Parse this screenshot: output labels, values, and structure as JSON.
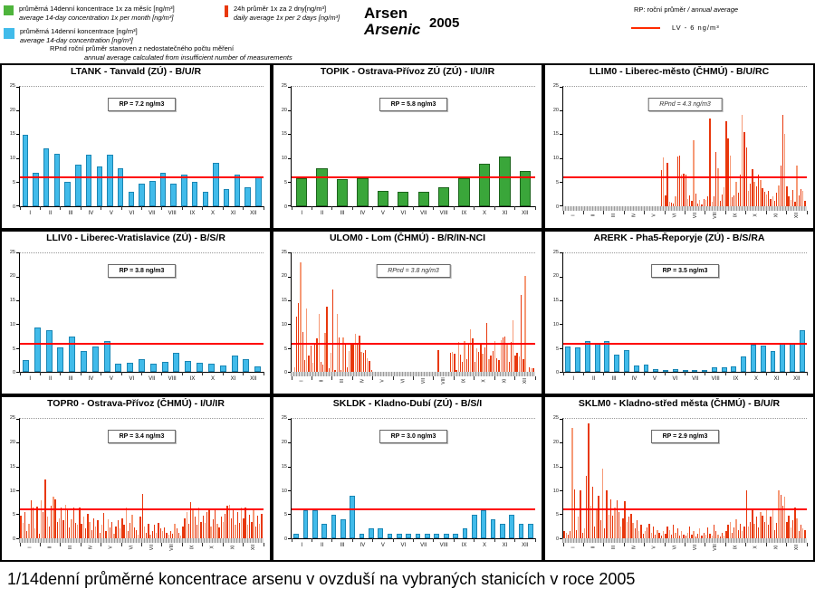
{
  "title": {
    "cz": "Arsen",
    "en": "Arsenic",
    "year": "2005"
  },
  "caption": "1/14denní průměrné koncentrace arsenu v ovzduší na vybraných stanicích v roce 2005",
  "legend": {
    "green": {
      "cz": "průměrná 14denní koncentrace 1x za měsíc [ng/m³]",
      "en": "average 14-day concentration 1x per month [ng/m³]"
    },
    "red": {
      "cz": "24h průměr 1x za 2 dny[ng/m³]",
      "en": "daily average 1x per 2 days [ng/m³]"
    },
    "cyan": {
      "cz": "průměrná 14denní koncentrace [ng/m³]",
      "en": "average 14-day concentration  [ng/m³]"
    },
    "rpnd_note": {
      "cz": "RPnd  roční průměr stanoven z nedostatečného počtu měření",
      "en": "annual average calculated from insufficient number of measurements"
    },
    "rp_note_cz": "RP: roční průměr",
    "rp_note_en": " / annual average",
    "lv_text": "LV   - 6 ng/m³"
  },
  "colors": {
    "cyan": "#41bbea",
    "cyan_border": "#1a86b4",
    "green": "#3aa63a",
    "green_border": "#1c641c",
    "daily_dark": "#e8380d",
    "daily_light": "#f69a77",
    "lv_line": "#ff0000"
  },
  "months": [
    "I",
    "II",
    "III",
    "IV",
    "V",
    "VI",
    "VII",
    "VIII",
    "IX",
    "X",
    "XI",
    "XII"
  ],
  "chart_data": [
    {
      "id": "ltank",
      "type": "bar",
      "style": "cyan",
      "title": "LTANK - Tanvald (ZÚ) - B/U/R",
      "rp_label": "RP = 7.2 ng/m3",
      "rp_nd": false,
      "ylim": [
        0,
        25
      ],
      "yticks": [
        0,
        5,
        10,
        15,
        20,
        25
      ],
      "lv": 6,
      "x_rotated": false,
      "gray_band": false,
      "values": [
        15.0,
        7.0,
        12.0,
        11.0,
        5.0,
        8.7,
        10.7,
        8.3,
        10.8,
        8.0,
        3.0,
        4.6,
        5.3,
        7.0,
        4.6,
        6.5,
        5.0,
        3.0,
        9.0,
        3.6,
        6.6,
        3.9,
        6.2
      ]
    },
    {
      "id": "topik",
      "type": "bar",
      "style": "green",
      "title": "TOPIK - Ostrava-Přívoz ZÚ (ZÚ) - I/U/IR",
      "rp_label": "RP = 5.8 ng/m3",
      "rp_nd": false,
      "ylim": [
        0,
        25
      ],
      "yticks": [
        0,
        5,
        10,
        15,
        20,
        25
      ],
      "lv": 6,
      "x_rotated": false,
      "gray_band": false,
      "values": [
        5.9,
        7.9,
        5.6,
        5.9,
        3.1,
        3.0,
        3.0,
        4.0,
        5.9,
        8.8,
        10.3,
        7.3
      ]
    },
    {
      "id": "llim0",
      "type": "bar",
      "style": "daily",
      "title": "LLIM0 - Liberec-město (ČHMÚ) - B/U/RC",
      "rp_label": "RPnd = 4.3 ng/m3",
      "rp_nd": true,
      "ylim": [
        0,
        25
      ],
      "yticks": [
        0,
        5,
        10,
        15,
        20,
        25
      ],
      "lv": 6,
      "x_rotated": true,
      "gray_band": true,
      "values": [
        0,
        0,
        0,
        0,
        0,
        0,
        0,
        0,
        0,
        0,
        0,
        0,
        0,
        0,
        0,
        0,
        0,
        0,
        0,
        0,
        0,
        0,
        0,
        0,
        0,
        0,
        0,
        0,
        0,
        0,
        0,
        0,
        0,
        0,
        0,
        0,
        0,
        0,
        0,
        0,
        0,
        0,
        0,
        0,
        0,
        0,
        0,
        0,
        7.6,
        10.2,
        2.3,
        9.0,
        0.8,
        0.7,
        0.5,
        2.0,
        10.3,
        10.5,
        6.6,
        6.8,
        6.5,
        1.5,
        2.3,
        1.0,
        13.8,
        2.6,
        0.6,
        1.2,
        0.3,
        1.5,
        1.2,
        2.0,
        18.3,
        0.9,
        2.1,
        11.3,
        8.0,
        1.0,
        2.5,
        4.0,
        17.7,
        14.2,
        10.6,
        1.8,
        2.2,
        5.0,
        2.8,
        6.5,
        19.2,
        15.5,
        12.2,
        3.2,
        4.6,
        7.8,
        5.0,
        4.2,
        6.6,
        5.5,
        3.8,
        3.0,
        2.5,
        3.2,
        1.5,
        2.0,
        1.0,
        2.8,
        4.3,
        8.5,
        19.1,
        15.1,
        4.2,
        2.0,
        1.2,
        3.3,
        0.8,
        8.5,
        2.2,
        3.5,
        3.2,
        1.0
      ]
    },
    {
      "id": "lliv0",
      "type": "bar",
      "style": "cyan",
      "title": "LLIV0 - Liberec-Vratislavice (ZÚ) - B/S/R",
      "rp_label": "RP = 3.8 ng/m3",
      "rp_nd": false,
      "ylim": [
        0,
        25
      ],
      "yticks": [
        0,
        5,
        10,
        15,
        20,
        25
      ],
      "lv": 6,
      "x_rotated": false,
      "gray_band": false,
      "values": [
        2.6,
        9.4,
        8.8,
        5.2,
        7.5,
        4.5,
        5.3,
        6.5,
        1.8,
        1.9,
        2.7,
        1.7,
        2.1,
        4.1,
        2.3,
        2.0,
        1.7,
        1.3,
        3.5,
        2.7,
        1.2
      ]
    },
    {
      "id": "ulom0",
      "type": "bar",
      "style": "daily",
      "title": "ULOM0 - Lom (ČHMÚ) - B/R/IN-NCI",
      "rp_label": "RPnd = 3.8 ng/m3",
      "rp_nd": true,
      "ylim": [
        0,
        25
      ],
      "yticks": [
        0,
        5,
        10,
        15,
        20,
        25
      ],
      "lv": 6,
      "x_rotated": true,
      "gray_band": true,
      "values": [
        0,
        1.0,
        11.6,
        14.5,
        23.0,
        8.5,
        2.6,
        13.4,
        3.5,
        5.5,
        2.0,
        6.2,
        7.0,
        12.3,
        2.2,
        1.5,
        8.3,
        13.8,
        0.8,
        4.0,
        17.4,
        0.5,
        12.2,
        7.3,
        0.4,
        7.2,
        6.2,
        1.0,
        4.5,
        5.8,
        6.0,
        8.0,
        5.8,
        7.7,
        4.2,
        4.0,
        4.6,
        2.9,
        2.4,
        0.5,
        0,
        0,
        0,
        0,
        0,
        0,
        0,
        0,
        0,
        0,
        0,
        0,
        0,
        0,
        0,
        0,
        0,
        0,
        0,
        0,
        0,
        0,
        0,
        0,
        0,
        0,
        0,
        0,
        0,
        0,
        0,
        0,
        4.7,
        0,
        0,
        0,
        0,
        0,
        4.0,
        4.2,
        3.8,
        0.5,
        6.3,
        3.6,
        2.2,
        6.5,
        2.8,
        6.0,
        8.9,
        7.0,
        2.2,
        5.0,
        4.3,
        5.8,
        3.8,
        5.2,
        10.4,
        2.7,
        3.4,
        4.4,
        6.5,
        3.0,
        2.5,
        6.8,
        7.2,
        7.4,
        6.2,
        2.2,
        6.3,
        10.9,
        3.4,
        4.0,
        3.2,
        16.2,
        2.8,
        20.2,
        0,
        1.0,
        0.8,
        0.9
      ]
    },
    {
      "id": "arerk",
      "type": "bar",
      "style": "cyan",
      "title": "ARERK - Pha5-Řeporyje (ZÚ) - B/S/RA",
      "rp_label": "RP = 3.5 ng/m3",
      "rp_nd": false,
      "ylim": [
        0,
        25
      ],
      "yticks": [
        0,
        5,
        10,
        15,
        20,
        25
      ],
      "lv": 6,
      "x_rotated": false,
      "gray_band": false,
      "values": [
        5.4,
        5.2,
        6.6,
        5.9,
        6.6,
        3.6,
        4.7,
        1.3,
        1.5,
        0.7,
        0.5,
        0.6,
        0.5,
        0.3,
        0.5,
        1.1,
        1.1,
        1.2,
        3.2,
        5.8,
        5.5,
        4.5,
        5.9,
        5.9,
        8.8
      ]
    },
    {
      "id": "topr0",
      "type": "bar",
      "style": "daily",
      "title": "TOPR0 - Ostrava-Přívoz (ČHMÚ) - I/U/IR",
      "rp_label": "RP = 3.4 ng/m3",
      "rp_nd": false,
      "ylim": [
        0,
        25
      ],
      "yticks": [
        0,
        5,
        10,
        15,
        20,
        25
      ],
      "lv": 6,
      "x_rotated": true,
      "gray_band": true,
      "values": [
        4.8,
        3.2,
        5.5,
        1.5,
        3.0,
        8.0,
        6.5,
        2.0,
        6.6,
        1.0,
        8.0,
        5.5,
        12.4,
        4.5,
        2.5,
        6.8,
        8.7,
        8.2,
        3.5,
        4.2,
        6.5,
        3.8,
        7.0,
        6.3,
        2.2,
        4.0,
        6.5,
        3.2,
        2.8,
        6.4,
        3.0,
        4.5,
        2.0,
        5.2,
        3.5,
        1.8,
        4.2,
        2.5,
        3.8,
        1.2,
        2.8,
        5.3,
        1.5,
        4.0,
        2.2,
        3.5,
        1.0,
        2.5,
        3.8,
        2.0,
        4.2,
        2.8,
        6.5,
        1.5,
        3.2,
        5.0,
        2.2,
        1.8,
        0.8,
        4.5,
        9.4,
        2.5,
        1.2,
        3.0,
        0.8,
        1.5,
        2.8,
        1.2,
        3.2,
        2.0,
        1.5,
        2.2,
        1.2,
        0.8,
        1.5,
        1.0,
        3.0,
        2.1,
        1.2,
        0.5,
        2.5,
        4.2,
        5.5,
        3.0,
        7.6,
        5.8,
        4.5,
        2.8,
        6.4,
        3.5,
        4.8,
        3.2,
        5.5,
        6.2,
        2.5,
        4.0,
        5.8,
        3.0,
        2.2,
        4.5,
        3.5,
        5.2,
        6.8,
        7.0,
        4.2,
        6.2,
        2.8,
        5.5,
        3.2,
        6.5,
        4.2,
        6.5,
        2.8,
        5.0,
        3.5,
        6.0,
        2.5,
        4.8,
        3.0,
        5.2
      ]
    },
    {
      "id": "skldk",
      "type": "bar",
      "style": "cyan",
      "title": "SKLDK - Kladno-Dubí (ZÚ) - B/S/I",
      "rp_label": "RP = 3.0 ng/m3",
      "rp_nd": false,
      "ylim": [
        0,
        25
      ],
      "yticks": [
        0,
        5,
        10,
        15,
        20,
        25
      ],
      "lv": 6,
      "x_rotated": false,
      "gray_band": false,
      "values": [
        1.0,
        5.9,
        5.9,
        3.0,
        5.0,
        4.0,
        9.0,
        1.0,
        2.0,
        2.0,
        1.0,
        1.0,
        1.0,
        1.0,
        1.0,
        1.0,
        1.0,
        1.0,
        2.0,
        5.0,
        5.9,
        4.0,
        3.0,
        5.0,
        3.0,
        3.0
      ]
    },
    {
      "id": "sklm0",
      "type": "bar",
      "style": "daily",
      "title": "SKLM0 - Kladno-střed města (ČHMÚ) - B/U/R",
      "rp_label": "RP = 2.9 ng/m3",
      "rp_nd": false,
      "ylim": [
        0,
        25
      ],
      "yticks": [
        0,
        5,
        10,
        15,
        20,
        25
      ],
      "lv": 6,
      "x_rotated": true,
      "gray_band": true,
      "values": [
        1.5,
        1.2,
        0.8,
        1.5,
        23.1,
        10.2,
        1.8,
        4.5,
        10.1,
        1.2,
        2.0,
        13.1,
        24.1,
        6.8,
        10.9,
        2.5,
        6.0,
        8.9,
        3.8,
        14.7,
        2.0,
        10.1,
        5.0,
        8.2,
        4.8,
        6.5,
        8.0,
        5.5,
        2.5,
        4.2,
        7.8,
        3.5,
        4.5,
        5.2,
        3.2,
        2.0,
        3.8,
        1.5,
        2.8,
        1.0,
        1.5,
        2.2,
        3.0,
        1.2,
        2.5,
        0.8,
        1.8,
        1.2,
        0.5,
        1.5,
        1.0,
        2.5,
        1.8,
        0.8,
        2.8,
        1.2,
        2.0,
        0.5,
        1.5,
        0.8,
        0.5,
        1.2,
        2.5,
        0.8,
        1.5,
        0.4,
        1.0,
        2.0,
        0.6,
        1.2,
        0.8,
        2.2,
        1.0,
        0.5,
        2.8,
        1.5,
        0.8,
        0.4,
        1.2,
        0.6,
        1.5,
        2.8,
        3.5,
        1.2,
        2.2,
        4.0,
        1.8,
        3.0,
        1.5,
        2.5,
        10.0,
        2.5,
        3.5,
        5.8,
        3.0,
        4.5,
        2.2,
        5.5,
        4.8,
        3.5,
        6.3,
        2.8,
        4.5,
        6.0,
        1.8,
        3.2,
        10.1,
        9.2,
        6.8,
        8.7,
        3.5,
        4.8,
        2.2,
        3.8,
        6.5,
        4.2,
        1.5,
        2.8,
        2.0,
        1.8
      ]
    }
  ]
}
